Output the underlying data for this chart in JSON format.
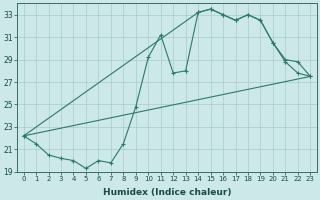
{
  "xlabel": "Humidex (Indice chaleur)",
  "bg_color": "#cce8e8",
  "grid_color": "#a8cccc",
  "line_color": "#2a7a6a",
  "xlim": [
    -0.5,
    23.5
  ],
  "ylim": [
    19,
    34
  ],
  "xticks": [
    0,
    1,
    2,
    3,
    4,
    5,
    6,
    7,
    8,
    9,
    10,
    11,
    12,
    13,
    14,
    15,
    16,
    17,
    18,
    19,
    20,
    21,
    22,
    23
  ],
  "yticks": [
    19,
    21,
    23,
    25,
    27,
    29,
    31,
    33
  ],
  "line1_x": [
    0,
    1,
    2,
    3,
    4,
    5,
    6,
    7,
    8,
    9,
    10,
    11,
    12,
    13,
    14,
    15,
    16,
    17,
    18,
    19,
    20,
    21,
    22,
    23
  ],
  "line1_y": [
    22.2,
    21.5,
    20.5,
    20.2,
    20.0,
    19.3,
    20.0,
    19.8,
    21.5,
    24.8,
    29.2,
    31.2,
    27.8,
    28.0,
    33.2,
    33.5,
    33.0,
    32.5,
    33.0,
    32.5,
    30.5,
    28.8,
    27.8,
    27.5
  ],
  "line2_x": [
    0,
    14,
    15,
    16,
    17,
    18,
    19,
    20,
    21,
    22,
    23
  ],
  "line2_y": [
    22.2,
    33.2,
    33.5,
    33.0,
    32.5,
    33.0,
    32.5,
    30.5,
    29.0,
    28.8,
    27.5
  ],
  "line3_x": [
    0,
    23
  ],
  "line3_y": [
    22.2,
    27.5
  ]
}
